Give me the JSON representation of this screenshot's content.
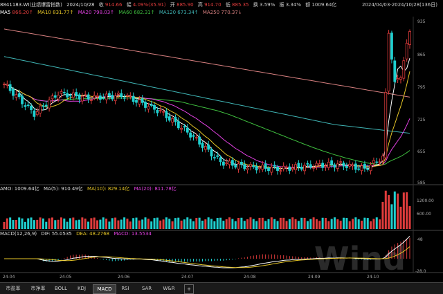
{
  "header": {
    "code": "8841183.WI(业绩爆雷指数)",
    "date": "2024/10/28",
    "close_label": "收",
    "close": "914.66",
    "chg_label": "幅",
    "chg": "4.09%(35.91)",
    "open_label": "开",
    "open": "885.90",
    "high_label": "高",
    "high": "914.70",
    "low_label": "低",
    "low": "885.35",
    "turn_label": "换",
    "turn": "3.59%",
    "amp_label": "振",
    "amp": "3.34%",
    "amo_label": "额",
    "amo": "1009.64亿",
    "range": "2024/04/03-2024/10/28(136日)"
  },
  "ma_legend": [
    {
      "label": "MA5",
      "value": "866.20↑",
      "color": "#ffffff"
    },
    {
      "label": "MA10",
      "value": "831.77↑",
      "color": "#e6c627"
    },
    {
      "label": "MA20",
      "value": "798.03↑",
      "color": "#e040e0"
    },
    {
      "label": "MA60",
      "value": "682.31↑",
      "color": "#3fbf3f"
    },
    {
      "label": "MA120",
      "value": "673.34↑",
      "color": "#3fb4b4"
    },
    {
      "label": "MA250",
      "value": "770.37↓",
      "color": "#d88080"
    }
  ],
  "price_axis": [
    "935",
    "865",
    "795",
    "725",
    "655",
    "585"
  ],
  "amo_legend": {
    "amo": "AMO: 1009.64亿",
    "ma5": "MA(5): 910.49亿",
    "ma10": "MA(10): 829.14亿",
    "ma20": "MA(20): 811.78亿"
  },
  "amo_axis": [
    "1200.00",
    "600.00"
  ],
  "macd_legend": {
    "name": "MACD(12,26,9)",
    "dif": "DIF: 55.0535",
    "dea": "DEA: 48.2768",
    "macd": "MACD: 13.5534"
  },
  "macd_axis": [
    "48",
    "-28.0"
  ],
  "x_axis": [
    "24-04",
    "24-05",
    "24-06",
    "24-07",
    "24-08",
    "24-09",
    "24-10"
  ],
  "watermark": "Wind",
  "tabs": [
    "市盈率",
    "市净率",
    "BOLL",
    "KDJ",
    "MACD",
    "RSI",
    "SAR",
    "W&R"
  ],
  "active_tab": "MACD",
  "add_tab_label": "+",
  "colors": {
    "up": "#e03c3c",
    "down": "#1fd0d0",
    "bg": "#000000"
  },
  "chart_data": {
    "type": "candlestick",
    "x": [
      "2024-04-03",
      "2024-10-28"
    ],
    "ylim": [
      585,
      935
    ],
    "close_last": 914.66,
    "open_last": 885.9,
    "high_last": 914.7,
    "low_last": 885.35
  }
}
